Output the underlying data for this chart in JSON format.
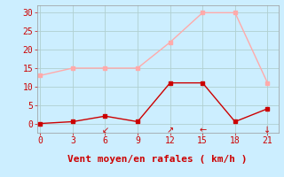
{
  "x": [
    0,
    3,
    6,
    9,
    12,
    15,
    18,
    21
  ],
  "rafales": [
    13,
    15,
    15,
    15,
    22,
    30,
    30,
    11
  ],
  "vent_moyen": [
    0,
    0.5,
    2,
    0.5,
    11,
    11,
    0.5,
    4
  ],
  "rafales_color": "#ffaaaa",
  "vent_moyen_color": "#cc0000",
  "bg_color": "#cceeff",
  "grid_color": "#b0d0d0",
  "xlabel": "Vent moyen/en rafales ( km/h )",
  "xlabel_color": "#cc0000",
  "yticks": [
    0,
    5,
    10,
    15,
    20,
    25,
    30
  ],
  "xticks": [
    0,
    3,
    6,
    9,
    12,
    15,
    18,
    21
  ],
  "ylim": [
    -2.5,
    32
  ],
  "xlim": [
    -0.3,
    22
  ],
  "arrows": [
    {
      "x": 6,
      "text": "↙"
    },
    {
      "x": 12,
      "text": "↗"
    },
    {
      "x": 15,
      "text": "←"
    },
    {
      "x": 21,
      "text": "↓"
    }
  ],
  "tick_color": "#cc0000",
  "tick_fontsize": 7,
  "xlabel_fontsize": 8,
  "linewidth": 1.0,
  "marker_size": 2.5
}
